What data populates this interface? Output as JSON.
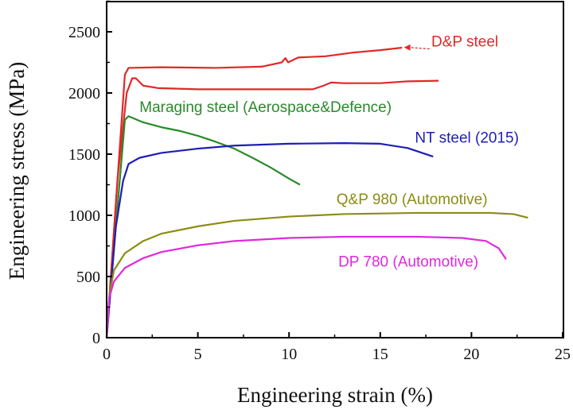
{
  "chart_data": {
    "type": "line",
    "xlabel": "Engineering strain (%)",
    "ylabel": "Engineering stress (MPa)",
    "xlim": [
      0,
      25
    ],
    "ylim": [
      0,
      2500
    ],
    "xticks": [
      "0",
      "5",
      "10",
      "15",
      "20",
      "25"
    ],
    "yticks": [
      "0",
      "500",
      "1000",
      "1500",
      "2000",
      "2500"
    ],
    "grid": false,
    "series": [
      {
        "name": "D&P steel",
        "color": "#e02828",
        "points": [
          [
            0,
            0
          ],
          [
            0.6,
            1300
          ],
          [
            1.0,
            2150
          ],
          [
            1.2,
            2205
          ],
          [
            3,
            2210
          ],
          [
            6,
            2205
          ],
          [
            8.5,
            2215
          ],
          [
            9.6,
            2250
          ],
          [
            9.8,
            2285
          ],
          [
            9.95,
            2250
          ],
          [
            10.5,
            2290
          ],
          [
            12,
            2300
          ],
          [
            13.5,
            2330
          ],
          [
            15,
            2350
          ],
          [
            16.2,
            2370
          ]
        ]
      },
      {
        "name": "D&P steel",
        "color": "#e02828",
        "points": [
          [
            0,
            0
          ],
          [
            0.6,
            1300
          ],
          [
            1.1,
            2000
          ],
          [
            1.4,
            2120
          ],
          [
            1.6,
            2120
          ],
          [
            2.0,
            2060
          ],
          [
            2.8,
            2040
          ],
          [
            5,
            2030
          ],
          [
            8,
            2030
          ],
          [
            11.3,
            2030
          ],
          [
            11.9,
            2060
          ],
          [
            12.3,
            2085
          ],
          [
            13,
            2080
          ],
          [
            15,
            2080
          ],
          [
            16.5,
            2095
          ],
          [
            18.2,
            2100
          ]
        ]
      },
      {
        "name": "Maraging steel (Aerospace&Defence)",
        "color": "#2a8a2a",
        "points": [
          [
            0,
            0
          ],
          [
            0.5,
            900
          ],
          [
            1.0,
            1780
          ],
          [
            1.2,
            1810
          ],
          [
            2,
            1760
          ],
          [
            3,
            1720
          ],
          [
            4,
            1690
          ],
          [
            5,
            1650
          ],
          [
            6,
            1600
          ],
          [
            7,
            1545
          ],
          [
            8,
            1470
          ],
          [
            9,
            1390
          ],
          [
            10,
            1300
          ],
          [
            10.6,
            1250
          ]
        ]
      },
      {
        "name": "NT steel (2015)",
        "color": "#1e1eb4",
        "points": [
          [
            0,
            0
          ],
          [
            0.5,
            900
          ],
          [
            0.9,
            1280
          ],
          [
            1.2,
            1420
          ],
          [
            1.8,
            1470
          ],
          [
            3,
            1510
          ],
          [
            5,
            1545
          ],
          [
            7,
            1570
          ],
          [
            10,
            1585
          ],
          [
            13,
            1590
          ],
          [
            15,
            1585
          ],
          [
            16.5,
            1550
          ],
          [
            17.9,
            1480
          ]
        ]
      },
      {
        "name": "Q&P 980 (Automotive)",
        "color": "#8c8c14",
        "points": [
          [
            0,
            0
          ],
          [
            0.15,
            350
          ],
          [
            0.4,
            550
          ],
          [
            1,
            690
          ],
          [
            2,
            790
          ],
          [
            3,
            850
          ],
          [
            5,
            910
          ],
          [
            7,
            955
          ],
          [
            10,
            990
          ],
          [
            13,
            1010
          ],
          [
            17,
            1020
          ],
          [
            21,
            1020
          ],
          [
            22.3,
            1010
          ],
          [
            23.1,
            980
          ]
        ]
      },
      {
        "name": "DP 780 (Automotive)",
        "color": "#e028e0",
        "points": [
          [
            0,
            0
          ],
          [
            0.15,
            330
          ],
          [
            0.4,
            460
          ],
          [
            1,
            570
          ],
          [
            2,
            650
          ],
          [
            3,
            700
          ],
          [
            5,
            755
          ],
          [
            7,
            790
          ],
          [
            10,
            815
          ],
          [
            13,
            825
          ],
          [
            17,
            825
          ],
          [
            19.5,
            815
          ],
          [
            20.8,
            790
          ],
          [
            21.5,
            730
          ],
          [
            21.9,
            640
          ]
        ]
      }
    ],
    "annotations": [
      {
        "text": "D&P steel",
        "color": "#e02828",
        "x": 17.8,
        "y": 2380
      },
      {
        "text": "Maraging steel (Aerospace&Defence)",
        "color": "#2a8a2a",
        "x": 1.8,
        "y": 1845
      },
      {
        "text": "NT steel (2015)",
        "color": "#1e1eb4",
        "x": 16.9,
        "y": 1595
      },
      {
        "text": "Q&P 980 (Automotive)",
        "color": "#8c8c14",
        "x": 12.6,
        "y": 1090
      },
      {
        "text": "DP 780 (Automotive)",
        "color": "#e028e0",
        "x": 12.7,
        "y": 580
      }
    ]
  }
}
